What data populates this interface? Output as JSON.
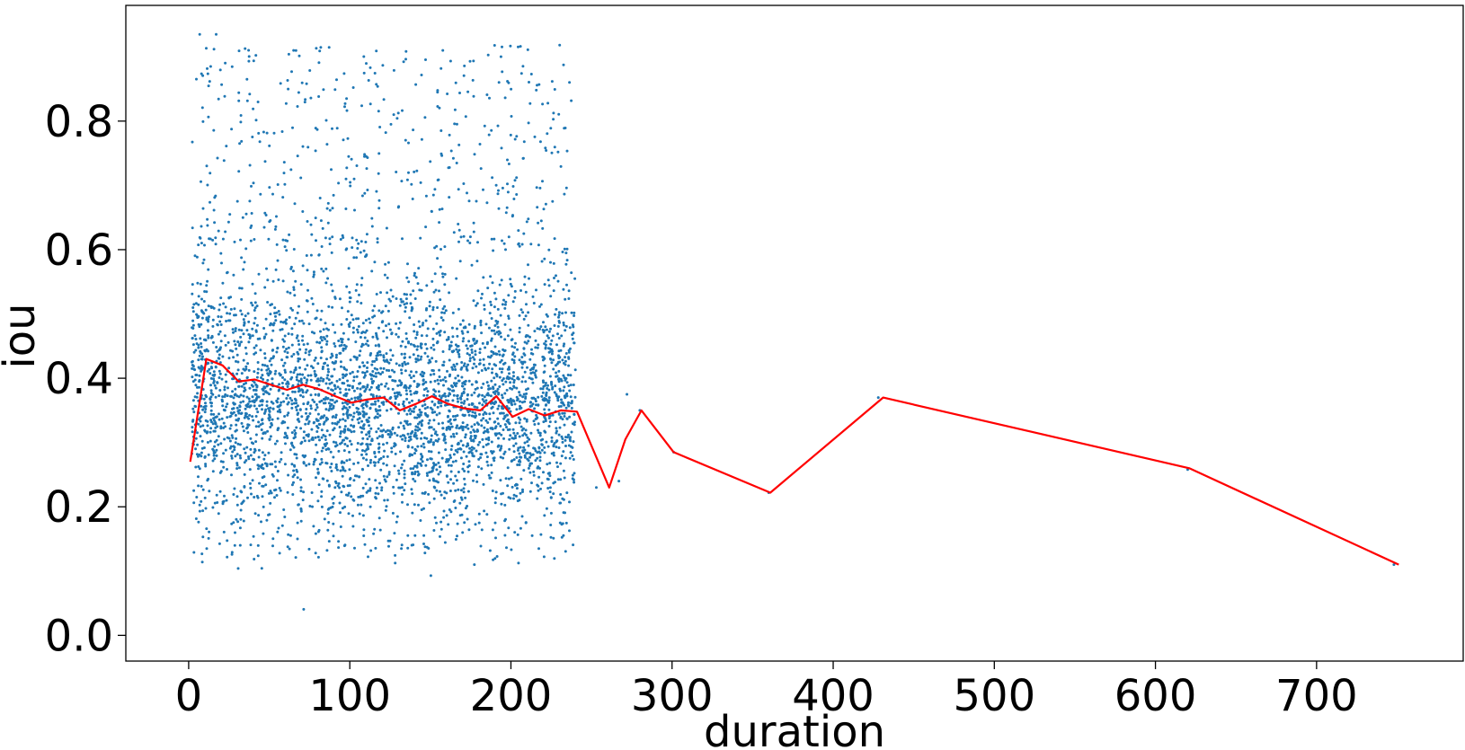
{
  "chart_data": {
    "type": "scatter",
    "title": "",
    "xlabel": "duration",
    "ylabel": "iou",
    "xlim": [
      -39,
      791
    ],
    "ylim": [
      -0.04,
      0.98
    ],
    "xticks": [
      0,
      100,
      200,
      300,
      400,
      500,
      600,
      700
    ],
    "xtick_labels": [
      "0",
      "100",
      "200",
      "300",
      "400",
      "500",
      "600",
      "700"
    ],
    "yticks": [
      0.0,
      0.2,
      0.4,
      0.6,
      0.8
    ],
    "ytick_labels": [
      "0.0",
      "0.2",
      "0.4",
      "0.6",
      "0.8"
    ],
    "grid": false,
    "legend": "none",
    "scatter_series": {
      "color": "#1f77b4",
      "description_of_dense_region": "approximately 5000 points spread over duration 0–240, iou mostly 0.1–0.6, densest near 0.3–0.45, sparse up to ~0.93",
      "dense_region_x_range": [
        2,
        240
      ],
      "dense_region_center_iou": 0.36,
      "outlier_points": [
        {
          "x": 253,
          "y": 0.23
        },
        {
          "x": 267,
          "y": 0.24
        },
        {
          "x": 272,
          "y": 0.375
        },
        {
          "x": 280,
          "y": 0.35
        },
        {
          "x": 301,
          "y": 0.285
        },
        {
          "x": 360,
          "y": 0.222
        },
        {
          "x": 428,
          "y": 0.37
        },
        {
          "x": 620,
          "y": 0.258
        },
        {
          "x": 748,
          "y": 0.11
        }
      ]
    },
    "line_series": {
      "color": "#ff0000",
      "x": [
        1,
        11,
        21,
        31,
        41,
        51,
        61,
        71,
        81,
        91,
        101,
        111,
        121,
        131,
        141,
        151,
        161,
        171,
        181,
        191,
        201,
        211,
        221,
        231,
        241,
        261,
        271,
        281,
        301,
        361,
        431,
        621,
        751
      ],
      "y": [
        0.27,
        0.43,
        0.42,
        0.395,
        0.398,
        0.39,
        0.382,
        0.39,
        0.383,
        0.372,
        0.362,
        0.367,
        0.37,
        0.35,
        0.36,
        0.372,
        0.36,
        0.353,
        0.35,
        0.372,
        0.34,
        0.352,
        0.342,
        0.35,
        0.348,
        0.23,
        0.305,
        0.35,
        0.285,
        0.222,
        0.37,
        0.26,
        0.11
      ]
    }
  }
}
